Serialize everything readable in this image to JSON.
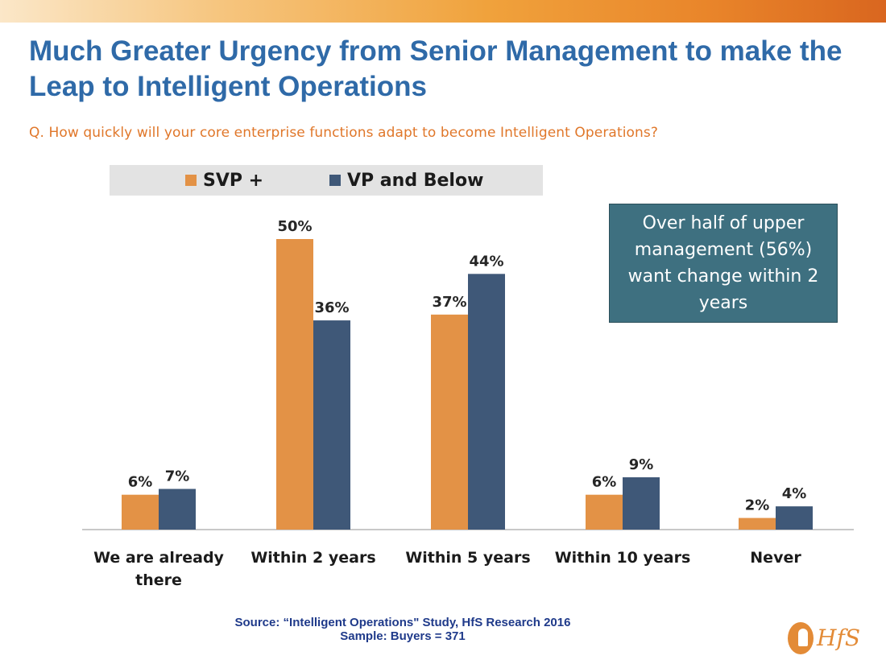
{
  "slide": {
    "title": "Much Greater Urgency from Senior Management to make the Leap to Intelligent Operations",
    "subtitle": "Q. How quickly will your core enterprise functions adapt to become Intelligent Operations?",
    "callout": "Over half of upper management (56%) want change within 2 years",
    "source_line1": "Source: “Intelligent Operations\" Study, HfS Research 2016",
    "source_line2": "Sample: Buyers = 371",
    "logo_text": "HfS"
  },
  "chart_data": {
    "type": "bar",
    "title": "",
    "xlabel": "",
    "ylabel": "",
    "ylim": [
      0,
      50
    ],
    "grid": false,
    "legend_position": "top",
    "categories": [
      [
        "We are already",
        "there"
      ],
      [
        "Within 2 years"
      ],
      [
        "Within 5 years"
      ],
      [
        "Within 10 years"
      ],
      [
        "Never"
      ]
    ],
    "series": [
      {
        "name": "SVP +",
        "color": "#e39246",
        "values": [
          6,
          50,
          37,
          6,
          2
        ],
        "labels": [
          "6%",
          "50%",
          "37%",
          "6%",
          "2%"
        ]
      },
      {
        "name": "VP and Below",
        "color": "#3f5878",
        "values": [
          7,
          36,
          44,
          9,
          4
        ],
        "labels": [
          "7%",
          "36%",
          "44%",
          "9%",
          "4%"
        ]
      }
    ]
  }
}
